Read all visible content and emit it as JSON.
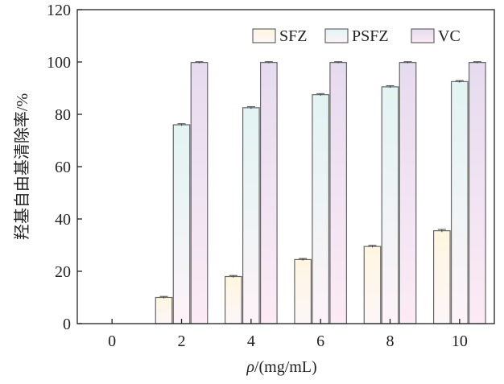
{
  "chart_data": {
    "type": "bar",
    "categories": [
      "0",
      "2",
      "4",
      "6",
      "8",
      "10"
    ],
    "series": [
      {
        "name": "SFZ",
        "values": [
          0,
          10,
          18,
          24.5,
          29.5,
          35.5
        ],
        "errors": [
          0,
          0.4,
          0.4,
          0.4,
          0.4,
          0.5
        ],
        "color_top": "#fff6e0",
        "color_bottom": "#fdf6f8"
      },
      {
        "name": "PSFZ",
        "values": [
          0,
          76,
          82.5,
          87.5,
          90.5,
          92.5
        ],
        "errors": [
          0,
          0.4,
          0.4,
          0.4,
          0.4,
          0.4
        ],
        "color_top": "#e2f4f3",
        "color_bottom": "#fdf3f8"
      },
      {
        "name": "VC",
        "values": [
          0,
          99.8,
          99.8,
          99.8,
          99.8,
          99.8
        ],
        "errors": [
          0,
          0.3,
          0.3,
          0.3,
          0.3,
          0.3
        ],
        "color_top": "#e6dcef",
        "color_bottom": "#fcebf5"
      }
    ],
    "yticks": [
      "0",
      "20",
      "40",
      "60",
      "80",
      "100",
      "120"
    ],
    "ylim": [
      0,
      120
    ],
    "ylabel": "羟基自由基清除率/%",
    "xlabel_symbol": "ρ",
    "xlabel_rest": "/(mg/mL)",
    "legend_position": "top-right",
    "grid": false,
    "bar_stroke": "#666666",
    "axis_color": "#222222"
  }
}
